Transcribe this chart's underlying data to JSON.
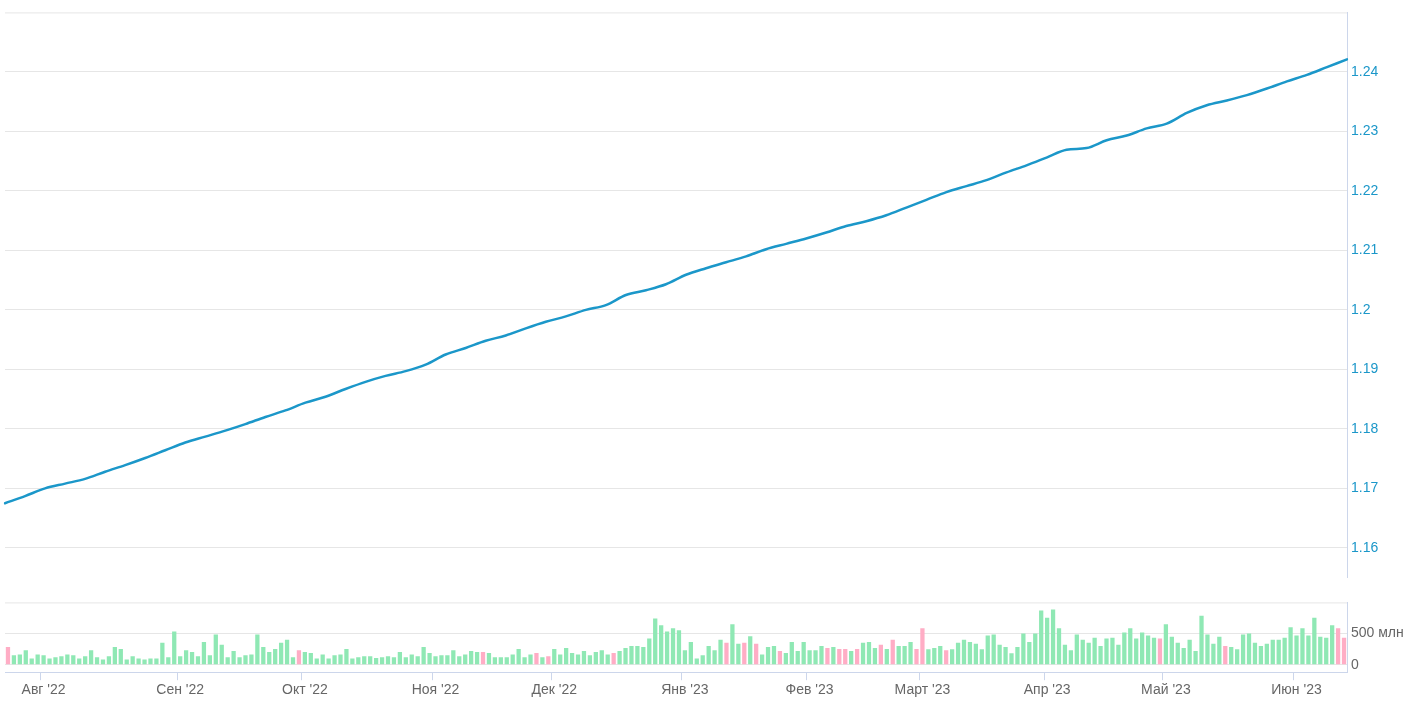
{
  "chart_data": [
    {
      "type": "line",
      "categories": [
        null,
        null,
        null,
        null,
        null,
        null,
        null,
        null,
        null,
        null,
        null,
        null,
        null,
        null,
        null,
        null,
        null,
        null,
        null,
        null,
        null,
        null,
        null,
        null,
        null,
        null,
        null,
        null,
        null,
        null,
        null,
        null,
        null,
        null,
        null,
        null,
        null,
        null,
        null,
        null,
        null,
        null,
        null,
        null,
        null,
        null,
        null,
        null,
        null,
        null,
        null,
        null,
        null,
        null,
        null,
        null,
        null,
        null,
        null,
        null,
        null,
        null,
        null,
        null,
        null,
        null,
        null,
        null
      ],
      "values": [
        1.1675,
        1.1687,
        1.17,
        1.1708,
        1.1716,
        1.1728,
        1.1739,
        1.1751,
        1.1764,
        1.1777,
        1.1787,
        1.1797,
        1.1808,
        1.182,
        1.1831,
        1.1844,
        1.1854,
        1.1867,
        1.1879,
        1.1889,
        1.1897,
        1.1908,
        1.1925,
        1.1936,
        1.1948,
        1.1957,
        1.1969,
        1.198,
        1.1989,
        1.2,
        1.2008,
        1.2025,
        1.2033,
        1.2043,
        1.2059,
        1.207,
        1.208,
        1.209,
        1.2102,
        1.2111,
        1.212,
        1.213,
        1.2141,
        1.2149,
        1.2159,
        1.2172,
        1.2185,
        1.2198,
        1.2208,
        1.2218,
        1.2231,
        1.2243,
        1.2256,
        1.2269,
        1.2272,
        1.2285,
        1.2293,
        1.2305,
        1.2313,
        1.2331,
        1.2344,
        1.2352,
        1.2361,
        1.2372,
        1.2384,
        1.2395,
        1.2408,
        1.2421
      ],
      "color": "#1b97c9",
      "ylim": [
        1.155,
        1.25
      ],
      "yticks": [
        1.16,
        1.17,
        1.18,
        1.19,
        1.2,
        1.21,
        1.22,
        1.23,
        1.24
      ],
      "grid": "y",
      "tick_labels": "y"
    },
    {
      "type": "bar",
      "categories": [
        null,
        null,
        null,
        null,
        null,
        null,
        "Авг '22",
        null,
        null,
        null,
        null,
        null,
        null,
        null,
        null,
        null,
        null,
        null,
        null,
        null,
        null,
        null,
        null,
        null,
        null,
        null,
        null,
        null,
        null,
        "Сен '22",
        null,
        null,
        null,
        null,
        null,
        null,
        null,
        null,
        null,
        null,
        null,
        null,
        null,
        null,
        null,
        null,
        null,
        null,
        null,
        null,
        "Окт '22",
        null,
        null,
        null,
        null,
        null,
        null,
        null,
        null,
        null,
        null,
        null,
        null,
        null,
        null,
        null,
        null,
        null,
        null,
        null,
        null,
        null,
        "Ноя '22",
        null,
        null,
        null,
        null,
        null,
        null,
        null,
        null,
        null,
        null,
        null,
        null,
        null,
        null,
        null,
        null,
        null,
        null,
        null,
        "Дек '22",
        null,
        null,
        null,
        null,
        null,
        null,
        null,
        null,
        null,
        null,
        null,
        null,
        null,
        null,
        null,
        null,
        null,
        null,
        null,
        null,
        null,
        "Янв '23",
        null,
        null,
        null,
        null,
        null,
        null,
        null,
        null,
        null,
        null,
        null,
        null,
        null,
        null,
        null,
        null,
        null,
        null,
        null,
        null,
        "Фев '23",
        null,
        null,
        null,
        null,
        null,
        null,
        null,
        null,
        null,
        null,
        null,
        null,
        null,
        null,
        null,
        null,
        null,
        null,
        "Март '23",
        null,
        null,
        null,
        null,
        null,
        null,
        null,
        null,
        null,
        null,
        null,
        null,
        null,
        null,
        null,
        null,
        null,
        null,
        null,
        null,
        "Апр '23",
        null,
        null,
        null,
        null,
        null,
        null,
        null,
        null,
        null,
        null,
        null,
        null,
        null,
        null,
        null,
        null,
        null,
        null,
        null,
        "Май '23",
        null,
        null,
        null,
        null,
        null,
        null,
        null,
        null,
        null,
        null,
        null,
        null,
        null,
        null,
        null,
        null,
        null,
        null,
        null,
        null,
        null,
        "Июн '23",
        null,
        null,
        null,
        null,
        null,
        null,
        null,
        null
      ],
      "values": [
        285,
        152,
        165,
        232,
        98,
        165,
        152,
        98,
        120,
        134,
        165,
        152,
        98,
        134,
        232,
        120,
        85,
        134,
        285,
        254,
        85,
        134,
        98,
        85,
        98,
        98,
        352,
        120,
        535,
        134,
        232,
        205,
        134,
        366,
        152,
        486,
        321,
        120,
        219,
        120,
        152,
        165,
        486,
        285,
        205,
        254,
        352,
        401,
        120,
        232,
        205,
        187,
        98,
        165,
        98,
        152,
        165,
        254,
        98,
        120,
        134,
        134,
        107,
        120,
        134,
        120,
        205,
        120,
        165,
        134,
        285,
        187,
        134,
        152,
        152,
        232,
        134,
        165,
        219,
        205,
        205,
        187,
        120,
        120,
        120,
        165,
        254,
        120,
        165,
        187,
        120,
        134,
        254,
        165,
        268,
        187,
        165,
        219,
        152,
        205,
        232,
        165,
        187,
        219,
        268,
        299,
        299,
        285,
        419,
        740,
        633,
        535,
        584,
        553,
        232,
        366,
        98,
        152,
        299,
        232,
        401,
        352,
        651,
        335,
        352,
        455,
        335,
        165,
        285,
        299,
        219,
        187,
        366,
        219,
        366,
        232,
        232,
        299,
        268,
        285,
        254,
        254,
        219,
        254,
        352,
        366,
        268,
        321,
        254,
        401,
        299,
        299,
        366,
        254,
        584,
        250,
        268,
        299,
        232,
        250,
        352,
        401,
        366,
        335,
        250,
        468,
        486,
        321,
        285,
        183,
        285,
        500,
        366,
        500,
        870,
        754,
        888,
        584,
        321,
        232,
        486,
        401,
        352,
        433,
        299,
        419,
        433,
        321,
        517,
        584,
        419,
        517,
        468,
        433,
        419,
        651,
        450,
        352,
        268,
        401,
        219,
        785,
        486,
        335,
        450,
        299,
        285,
        250,
        486,
        500,
        352,
        299,
        335,
        401,
        401,
        433,
        602,
        468,
        584,
        468,
        754,
        450,
        433,
        633,
        584,
        433
      ],
      "colors": [
        "#ffadc5",
        "#8fe8b4",
        "#8fe8b4",
        "#8fe8b4",
        "#8fe8b4",
        "#8fe8b4",
        "#8fe8b4",
        "#8fe8b4",
        "#8fe8b4",
        "#8fe8b4",
        "#8fe8b4",
        "#8fe8b4",
        "#8fe8b4",
        "#8fe8b4",
        "#8fe8b4",
        "#8fe8b4",
        "#8fe8b4",
        "#8fe8b4",
        "#8fe8b4",
        "#8fe8b4",
        "#8fe8b4",
        "#8fe8b4",
        "#8fe8b4",
        "#8fe8b4",
        "#8fe8b4",
        "#8fe8b4",
        "#8fe8b4",
        "#8fe8b4",
        "#8fe8b4",
        "#8fe8b4",
        "#8fe8b4",
        "#8fe8b4",
        "#8fe8b4",
        "#8fe8b4",
        "#8fe8b4",
        "#8fe8b4",
        "#8fe8b4",
        "#8fe8b4",
        "#8fe8b4",
        "#8fe8b4",
        "#8fe8b4",
        "#8fe8b4",
        "#8fe8b4",
        "#8fe8b4",
        "#8fe8b4",
        "#8fe8b4",
        "#8fe8b4",
        "#8fe8b4",
        "#8fe8b4",
        "#ffadc5",
        "#8fe8b4",
        "#8fe8b4",
        "#8fe8b4",
        "#8fe8b4",
        "#8fe8b4",
        "#8fe8b4",
        "#8fe8b4",
        "#8fe8b4",
        "#8fe8b4",
        "#8fe8b4",
        "#8fe8b4",
        "#8fe8b4",
        "#8fe8b4",
        "#8fe8b4",
        "#8fe8b4",
        "#8fe8b4",
        "#8fe8b4",
        "#8fe8b4",
        "#8fe8b4",
        "#8fe8b4",
        "#8fe8b4",
        "#8fe8b4",
        "#8fe8b4",
        "#8fe8b4",
        "#8fe8b4",
        "#8fe8b4",
        "#8fe8b4",
        "#8fe8b4",
        "#8fe8b4",
        "#8fe8b4",
        "#ffadc5",
        "#8fe8b4",
        "#8fe8b4",
        "#8fe8b4",
        "#8fe8b4",
        "#8fe8b4",
        "#8fe8b4",
        "#8fe8b4",
        "#8fe8b4",
        "#ffadc5",
        "#8fe8b4",
        "#ffadc5",
        "#8fe8b4",
        "#8fe8b4",
        "#8fe8b4",
        "#8fe8b4",
        "#8fe8b4",
        "#8fe8b4",
        "#8fe8b4",
        "#8fe8b4",
        "#8fe8b4",
        "#8fe8b4",
        "#ffadc5",
        "#8fe8b4",
        "#8fe8b4",
        "#8fe8b4",
        "#8fe8b4",
        "#8fe8b4",
        "#8fe8b4",
        "#8fe8b4",
        "#8fe8b4",
        "#8fe8b4",
        "#8fe8b4",
        "#8fe8b4",
        "#8fe8b4",
        "#8fe8b4",
        "#8fe8b4",
        "#8fe8b4",
        "#8fe8b4",
        "#8fe8b4",
        "#8fe8b4",
        "#ffadc5",
        "#8fe8b4",
        "#8fe8b4",
        "#ffadc5",
        "#8fe8b4",
        "#ffadc5",
        "#8fe8b4",
        "#8fe8b4",
        "#8fe8b4",
        "#ffadc5",
        "#8fe8b4",
        "#8fe8b4",
        "#8fe8b4",
        "#8fe8b4",
        "#8fe8b4",
        "#8fe8b4",
        "#8fe8b4",
        "#ffadc5",
        "#8fe8b4",
        "#ffadc5",
        "#ffadc5",
        "#8fe8b4",
        "#ffadc5",
        "#8fe8b4",
        "#8fe8b4",
        "#8fe8b4",
        "#ffadc5",
        "#8fe8b4",
        "#ffadc5",
        "#8fe8b4",
        "#8fe8b4",
        "#8fe8b4",
        "#ffadc5",
        "#ffadc5",
        "#8fe8b4",
        "#8fe8b4",
        "#8fe8b4",
        "#ffadc5",
        "#8fe8b4",
        "#8fe8b4",
        "#8fe8b4",
        "#8fe8b4",
        "#8fe8b4",
        "#8fe8b4",
        "#8fe8b4",
        "#8fe8b4",
        "#8fe8b4",
        "#8fe8b4",
        "#8fe8b4",
        "#8fe8b4",
        "#8fe8b4",
        "#8fe8b4",
        "#8fe8b4",
        "#8fe8b4",
        "#8fe8b4",
        "#8fe8b4",
        "#8fe8b4",
        "#8fe8b4",
        "#8fe8b4",
        "#8fe8b4",
        "#8fe8b4",
        "#8fe8b4",
        "#8fe8b4",
        "#8fe8b4",
        "#8fe8b4",
        "#8fe8b4",
        "#8fe8b4",
        "#8fe8b4",
        "#8fe8b4",
        "#8fe8b4",
        "#8fe8b4",
        "#8fe8b4",
        "#8fe8b4",
        "#ffadc5",
        "#8fe8b4",
        "#8fe8b4",
        "#8fe8b4",
        "#8fe8b4",
        "#8fe8b4",
        "#8fe8b4",
        "#8fe8b4",
        "#8fe8b4",
        "#8fe8b4",
        "#8fe8b4",
        "#ffadc5",
        "#8fe8b4",
        "#8fe8b4",
        "#8fe8b4",
        "#8fe8b4",
        "#8fe8b4",
        "#8fe8b4",
        "#8fe8b4",
        "#8fe8b4",
        "#8fe8b4",
        "#8fe8b4",
        "#8fe8b4",
        "#8fe8b4",
        "#8fe8b4",
        "#8fe8b4",
        "#8fe8b4",
        "#8fe8b4",
        "#8fe8b4",
        "#8fe8b4",
        "#ffadc5",
        "#ffadc5"
      ],
      "ylim": [
        -120,
        1000
      ],
      "yticks": [
        0,
        {
          "value": 500,
          "label": "500 млн"
        }
      ],
      "grid": "y"
    }
  ]
}
